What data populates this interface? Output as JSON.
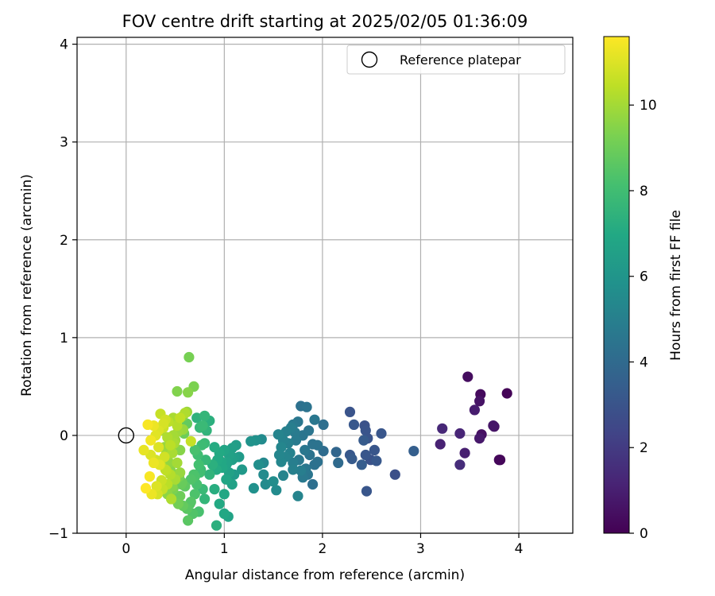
{
  "chart_data": {
    "type": "scatter",
    "title": "FOV centre drift starting at 2025/02/05 01:36:09",
    "xlabel": "Angular distance from reference (arcmin)",
    "ylabel": "Rotation from reference (arcmin)",
    "xlim": [
      -0.5,
      4.55
    ],
    "ylim": [
      -1.0,
      4.07
    ],
    "x_ticks": [
      0,
      1,
      2,
      3,
      4
    ],
    "y_ticks": [
      -1,
      0,
      1,
      2,
      3,
      4
    ],
    "grid": true,
    "legend": {
      "position": "top-right",
      "label": "Reference platepar"
    },
    "reference_point": {
      "x": 0.0,
      "y": 0.0
    },
    "colorbar": {
      "label": "Hours from first FF file",
      "colormap": "viridis",
      "range": [
        0,
        11.6
      ],
      "ticks": [
        0,
        2,
        4,
        6,
        8,
        10
      ]
    },
    "series": [
      {
        "x": [
          3.48,
          3.61,
          3.88,
          3.55,
          3.6,
          3.74,
          3.75,
          3.22,
          3.2,
          3.62,
          3.6,
          3.4,
          3.45,
          3.4,
          3.8,
          3.81,
          2.28,
          2.43,
          2.32,
          2.44,
          2.42,
          2.6,
          2.28,
          2.46,
          2.53,
          2.49,
          2.3,
          2.4,
          2.44,
          2.55,
          2.74,
          2.93,
          2.45,
          2.16,
          2.14,
          2.01,
          1.78,
          1.84,
          1.92,
          2.01,
          1.75,
          1.68,
          1.63,
          1.55,
          1.7,
          1.72,
          1.8,
          1.86,
          1.9,
          1.95,
          1.6,
          1.58,
          1.65,
          1.73,
          1.67,
          1.82,
          1.87,
          1.92,
          1.62,
          1.58,
          1.76,
          1.7,
          1.95,
          1.78,
          1.8,
          1.56,
          1.6,
          1.53,
          1.5,
          1.75,
          1.85,
          1.9,
          1.83,
          1.7,
          1.38,
          1.4,
          1.32,
          1.27,
          1.4,
          1.42,
          1.35,
          1.3,
          1.18,
          1.12,
          1.08,
          1.05,
          1.15,
          1.08,
          1.03,
          1.1,
          1.0,
          0.95,
          0.9,
          0.97,
          1.02,
          0.92,
          1.1,
          1.05,
          0.98,
          0.93,
          0.88,
          1.02,
          1.08,
          1.0,
          0.85,
          0.9,
          0.95,
          1.04,
          1.0,
          0.92,
          0.8,
          0.85,
          0.78,
          0.82,
          0.75,
          0.72,
          0.8,
          0.77,
          0.73,
          0.7,
          0.76,
          0.81,
          0.74,
          0.69,
          0.66,
          0.72,
          0.78,
          0.8,
          0.7,
          0.65,
          0.62,
          0.68,
          0.74,
          0.63,
          0.58,
          0.66,
          0.6,
          0.55,
          0.7,
          0.75,
          0.64,
          0.69,
          0.52,
          0.63,
          0.6,
          0.55,
          0.52,
          0.58,
          0.48,
          0.45,
          0.5,
          0.47,
          0.55,
          0.43,
          0.4,
          0.38,
          0.45,
          0.5,
          0.52,
          0.56,
          0.48,
          0.42,
          0.46,
          0.53,
          0.51,
          0.57,
          0.44,
          0.41,
          0.49,
          0.59,
          0.62,
          0.54,
          0.47,
          0.39,
          0.36,
          0.42,
          0.35,
          0.4,
          0.38,
          0.33,
          0.3,
          0.28,
          0.25,
          0.22,
          0.18,
          0.25,
          0.3,
          0.35,
          0.4,
          0.45,
          0.5,
          0.42,
          0.37,
          0.32,
          0.46,
          0.52,
          0.55,
          0.48,
          0.43,
          0.38,
          0.33,
          0.28,
          0.24,
          0.2,
          0.26,
          0.31,
          0.36,
          0.41,
          0.47,
          0.53,
          0.58,
          0.62,
          0.66,
          0.45,
          0.39,
          0.34
        ],
        "y": [
          0.6,
          0.42,
          0.43,
          0.26,
          0.35,
          0.1,
          0.09,
          0.07,
          -0.09,
          0.01,
          -0.03,
          0.02,
          -0.18,
          -0.3,
          -0.25,
          -0.25,
          0.24,
          0.1,
          0.11,
          0.05,
          -0.05,
          0.02,
          -0.2,
          -0.03,
          -0.15,
          -0.25,
          -0.24,
          -0.3,
          -0.2,
          -0.26,
          -0.4,
          -0.16,
          -0.57,
          -0.28,
          -0.17,
          -0.16,
          0.3,
          0.29,
          0.16,
          0.11,
          0.14,
          0.08,
          0.04,
          0.01,
          0.11,
          0.03,
          0.0,
          0.05,
          -0.09,
          -0.1,
          -0.05,
          -0.12,
          -0.08,
          -0.05,
          -0.18,
          -0.15,
          -0.2,
          -0.3,
          -0.22,
          -0.27,
          -0.25,
          -0.35,
          -0.27,
          -0.36,
          -0.43,
          -0.2,
          -0.41,
          -0.56,
          -0.47,
          -0.62,
          -0.4,
          -0.5,
          -0.34,
          -0.28,
          -0.04,
          -0.28,
          -0.05,
          -0.06,
          -0.4,
          -0.5,
          -0.3,
          -0.54,
          -0.35,
          -0.1,
          -0.13,
          -0.2,
          -0.22,
          -0.25,
          -0.28,
          -0.23,
          -0.15,
          -0.18,
          -0.12,
          -0.27,
          -0.3,
          -0.35,
          -0.4,
          -0.38,
          -0.33,
          -0.25,
          -0.3,
          -0.45,
          -0.5,
          -0.6,
          -0.4,
          -0.55,
          -0.7,
          -0.83,
          -0.8,
          -0.92,
          0.2,
          0.15,
          0.1,
          0.05,
          0.08,
          0.18,
          -0.08,
          -0.1,
          -0.2,
          -0.15,
          -0.35,
          -0.25,
          -0.3,
          -0.4,
          -0.45,
          -0.5,
          -0.55,
          -0.65,
          -0.6,
          -0.7,
          -0.75,
          -0.8,
          -0.78,
          -0.87,
          -0.72,
          -0.68,
          -0.52,
          -0.62,
          -0.42,
          -0.38,
          0.8,
          0.5,
          0.45,
          0.44,
          0.23,
          0.18,
          0.1,
          0.06,
          0.0,
          0.15,
          -0.05,
          -0.1,
          -0.15,
          -0.2,
          -0.25,
          -0.3,
          -0.35,
          -0.4,
          -0.45,
          -0.5,
          -0.55,
          -0.6,
          -0.65,
          -0.7,
          -0.62,
          -0.48,
          -0.28,
          -0.18,
          -0.08,
          0.02,
          0.12,
          -0.42,
          -0.52,
          -0.12,
          0.05,
          -0.02,
          0.22,
          0.16,
          0.12,
          0.05,
          0.0,
          0.1,
          -0.05,
          0.11,
          -0.15,
          -0.2,
          -0.25,
          -0.3,
          -0.35,
          -0.4,
          -0.45,
          -0.5,
          -0.55,
          -0.6,
          -0.65,
          -0.28,
          -0.38,
          0.18,
          0.14,
          0.08,
          -0.12,
          -0.28,
          -0.42,
          -0.54,
          -0.6,
          -0.52,
          -0.46,
          -0.36,
          -0.18,
          0.04,
          0.2,
          0.24,
          -0.06,
          -0.1,
          -0.22,
          -0.3
        ],
        "hours": [
          0.4,
          0.3,
          0.1,
          0.9,
          0.6,
          0.7,
          0.6,
          1.3,
          1.1,
          0.5,
          0.8,
          1.2,
          1.0,
          1.5,
          0.2,
          0.1,
          3.0,
          2.9,
          3.2,
          3.0,
          3.3,
          3.1,
          3.2,
          3.0,
          3.1,
          2.9,
          3.3,
          3.4,
          3.1,
          3.2,
          2.8,
          3.5,
          3.1,
          4.0,
          3.8,
          4.1,
          4.3,
          4.4,
          4.6,
          4.2,
          4.6,
          4.9,
          5.0,
          5.2,
          4.7,
          4.8,
          4.5,
          4.5,
          4.4,
          4.4,
          5.1,
          5.3,
          5.0,
          4.8,
          5.1,
          4.6,
          4.4,
          4.3,
          5.2,
          5.3,
          4.7,
          5.0,
          4.3,
          4.9,
          4.7,
          5.3,
          5.2,
          5.5,
          5.6,
          5.2,
          4.5,
          4.2,
          4.6,
          4.9,
          5.5,
          5.4,
          5.8,
          5.9,
          5.5,
          5.5,
          5.7,
          5.8,
          6.2,
          6.4,
          6.5,
          6.6,
          6.3,
          6.5,
          6.7,
          6.4,
          6.8,
          7.0,
          7.1,
          6.9,
          6.7,
          7.1,
          6.3,
          6.6,
          6.9,
          7.0,
          7.3,
          6.8,
          6.6,
          6.9,
          7.5,
          7.2,
          7.0,
          6.7,
          6.9,
          7.3,
          7.6,
          7.3,
          7.8,
          7.5,
          7.7,
          7.4,
          7.8,
          7.9,
          8.0,
          8.2,
          7.9,
          7.7,
          8.1,
          8.3,
          8.4,
          8.2,
          7.8,
          7.6,
          8.3,
          8.5,
          8.6,
          8.4,
          8.2,
          8.6,
          8.8,
          8.5,
          8.7,
          9.0,
          8.3,
          8.0,
          9.2,
          9.3,
          9.4,
          9.5,
          10.2,
          10.5,
          10.3,
          9.8,
          10.0,
          9.6,
          9.9,
          9.7,
          9.5,
          9.8,
          9.6,
          9.4,
          9.5,
          9.2,
          9.0,
          8.9,
          9.3,
          9.6,
          9.4,
          9.1,
          9.0,
          8.9,
          9.7,
          9.9,
          10.1,
          9.0,
          8.8,
          9.2,
          9.5,
          9.8,
          10.0,
          10.2,
          10.6,
          10.8,
          10.9,
          11.0,
          11.1,
          11.3,
          11.4,
          11.5,
          11.2,
          11.0,
          10.8,
          10.7,
          10.5,
          10.3,
          10.1,
          10.4,
          10.6,
          10.9,
          10.2,
          10.0,
          9.8,
          10.1,
          10.4,
          10.7,
          11.0,
          11.3,
          11.5,
          11.6,
          11.3,
          11.0,
          10.7,
          10.4,
          10.1,
          9.9,
          9.6,
          9.8,
          10.6,
          10.4,
          10.8,
          11.1
        ]
      }
    ]
  }
}
